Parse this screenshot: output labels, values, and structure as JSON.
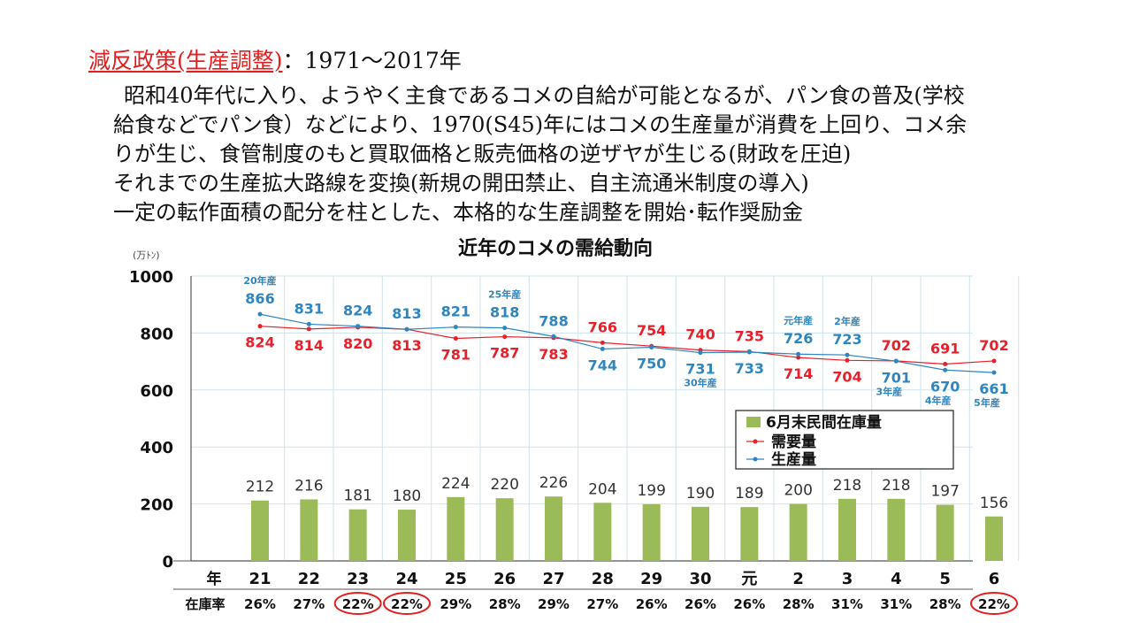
{
  "heading": {
    "policy": "減反政策(生産調整)",
    "period": "：1971～2017年"
  },
  "paragraph": [
    "昭和40年代に入り、ようやく主食であるコメの自給が可能となるが、パン食の普及(学校",
    "給食などでパン食）などにより、1970(S45)年にはコメの生産量が消費を上回り、コメ余",
    "りが生じ、食管制度のもと買取価格と販売価格の逆ザヤが生じる(財政を圧迫)",
    "それまでの生産拡大路線を変換(新規の開田禁止、自主流通米制度の導入)",
    "一定の転作面積の配分を柱とした、本格的な生産調整を開始･転作奨励金"
  ],
  "chart_data": {
    "type": "bar",
    "title": "近年のコメの需給動向",
    "y_unit": "(万ﾄﾝ)",
    "ylim": [
      0,
      1000
    ],
    "yticks": [
      0,
      200,
      400,
      600,
      800,
      1000
    ],
    "grid": true,
    "legend_position": "right-middle",
    "x_axis_label": "年",
    "categories": [
      "21",
      "22",
      "23",
      "24",
      "25",
      "26",
      "27",
      "28",
      "29",
      "30",
      "元",
      "2",
      "3",
      "4",
      "5",
      "6"
    ],
    "series": [
      {
        "name": "6月末民間在庫量",
        "kind": "bar",
        "color": "#9bbb59",
        "values": [
          212,
          216,
          181,
          180,
          224,
          220,
          226,
          204,
          199,
          190,
          189,
          200,
          218,
          218,
          197,
          156
        ]
      },
      {
        "name": "需要量",
        "kind": "line",
        "color": "#e8202a",
        "values": [
          824,
          814,
          820,
          813,
          781,
          787,
          783,
          766,
          754,
          740,
          735,
          714,
          704,
          702,
          691,
          702
        ]
      },
      {
        "name": "生産量",
        "kind": "line",
        "color": "#2e86c1",
        "values": [
          866,
          831,
          824,
          813,
          821,
          818,
          788,
          744,
          750,
          731,
          733,
          726,
          723,
          701,
          670,
          661
        ]
      }
    ],
    "demand_label_pos": [
      "below",
      "below",
      "below",
      "below",
      "below",
      "below",
      "below",
      "above",
      "above",
      "above",
      "above",
      "below",
      "below",
      "above",
      "above",
      "above"
    ],
    "production_label_pos": [
      "above",
      "above",
      "above",
      "above",
      "above",
      "above",
      "above",
      "below",
      "below",
      "below",
      "below",
      "above",
      "above",
      "below",
      "below",
      "below"
    ],
    "annotations": [
      {
        "index": 0,
        "text": "20年産",
        "position": "above"
      },
      {
        "index": 5,
        "text": "25年産",
        "position": "above"
      },
      {
        "index": 9,
        "text": "30年産",
        "position": "below"
      },
      {
        "index": 11,
        "text": "元年産",
        "position": "above"
      },
      {
        "index": 12,
        "text": "2年産",
        "position": "above"
      },
      {
        "index": 13,
        "text": "3年産",
        "position": "below"
      },
      {
        "index": 14,
        "text": "4年産",
        "position": "below"
      },
      {
        "index": 15,
        "text": "5年産",
        "position": "below"
      }
    ],
    "inventory_ratio": {
      "label": "在庫率",
      "values": [
        "26%",
        "27%",
        "22%",
        "22%",
        "29%",
        "28%",
        "29%",
        "27%",
        "26%",
        "26%",
        "26%",
        "28%",
        "31%",
        "31%",
        "28%",
        "22%"
      ],
      "circled": [
        2,
        3,
        15
      ],
      "circle_color": "#e02020"
    }
  }
}
